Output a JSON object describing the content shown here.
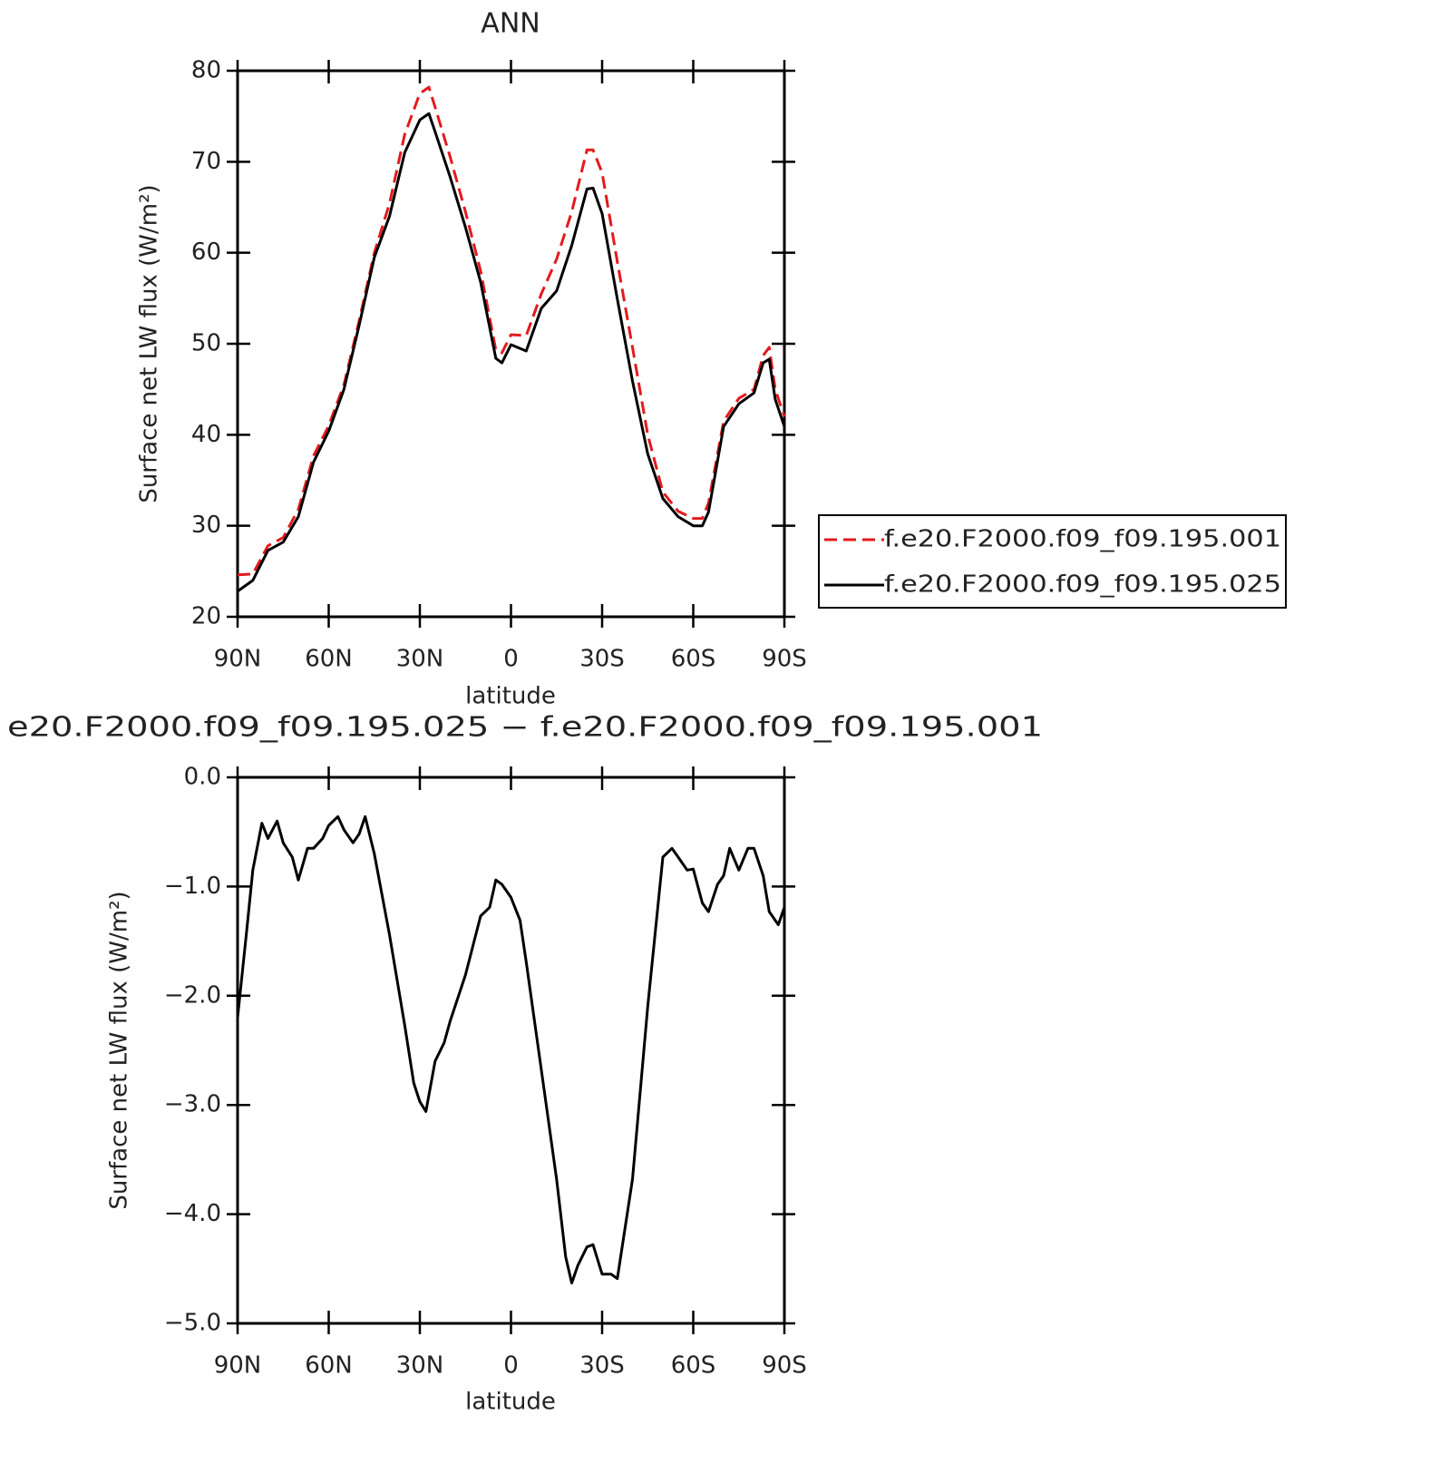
{
  "chart_data": [
    {
      "type": "line",
      "title": "ANN",
      "xlabel": "latitude",
      "ylabel": "Surface net LW flux (W/m²)",
      "xlim": [
        90,
        -90
      ],
      "xticks": [
        {
          "value": 90,
          "label": "90N"
        },
        {
          "value": 60,
          "label": "60N"
        },
        {
          "value": 30,
          "label": "30N"
        },
        0,
        {
          "value": -30,
          "label": "30S"
        },
        {
          "value": -60,
          "label": "60S"
        },
        {
          "value": -90,
          "label": "90S"
        }
      ],
      "ylim": [
        20,
        80
      ],
      "yticks": [
        20,
        30,
        40,
        50,
        60,
        70,
        80
      ],
      "legend": "right",
      "x": [
        90,
        85,
        80,
        75,
        70,
        65,
        60,
        55,
        50,
        45,
        40,
        35,
        30,
        27,
        25,
        20,
        15,
        10,
        5,
        3,
        0,
        -5,
        -10,
        -15,
        -20,
        -25,
        -27,
        -30,
        -35,
        -40,
        -45,
        -50,
        -55,
        -60,
        -63,
        -65,
        -70,
        -75,
        -80,
        -83,
        -85,
        -87,
        -90
      ],
      "series": [
        {
          "name": "f.e20.F2000.f09_f09.195.001",
          "color": "#e41a1c",
          "dashed": true,
          "values": [
            24.6,
            24.7,
            27.8,
            28.7,
            31.8,
            37.7,
            41,
            45.5,
            52.5,
            60,
            65.4,
            73,
            77.5,
            78.2,
            76,
            70.5,
            64.5,
            58,
            49.3,
            49,
            51,
            50.9,
            55.5,
            59.3,
            64.5,
            71.3,
            71.3,
            68.8,
            59,
            49.6,
            40,
            33.7,
            31.6,
            30.8,
            30.8,
            32.5,
            41.5,
            44,
            45,
            48.7,
            49.6,
            45,
            42
          ]
        },
        {
          "name": "f.e20.F2000.f09_f09.195.025",
          "color": "#000000",
          "dashed": false,
          "values": [
            22.8,
            24,
            27.3,
            28.2,
            31,
            37,
            40.4,
            45,
            52,
            59.5,
            64,
            71,
            74.6,
            75.3,
            73.3,
            68.3,
            62.8,
            56.8,
            48.4,
            47.9,
            49.9,
            49.2,
            53.9,
            55.8,
            60.8,
            67,
            67.1,
            64.3,
            54.9,
            45.9,
            37.9,
            33,
            31,
            30,
            30,
            31.5,
            40.9,
            43.4,
            44.6,
            47.9,
            48.3,
            43.9,
            40.9
          ]
        }
      ]
    },
    {
      "type": "line",
      "title": "e20.F2000.f09_f09.195.025 − f.e20.F2000.f09_f09.195.001",
      "xlabel": "latitude",
      "ylabel": "Surface net LW flux (W/m²)",
      "xlim": [
        90,
        -90
      ],
      "xticks": [
        {
          "value": 90,
          "label": "90N"
        },
        {
          "value": 60,
          "label": "60N"
        },
        {
          "value": 30,
          "label": "30N"
        },
        0,
        {
          "value": -30,
          "label": "30S"
        },
        {
          "value": -60,
          "label": "60S"
        },
        {
          "value": -90,
          "label": "90S"
        }
      ],
      "ylim": [
        -5,
        0
      ],
      "yticks": [
        {
          "value": -5,
          "label": "−5.0"
        },
        {
          "value": -4,
          "label": "−4.0"
        },
        {
          "value": -3,
          "label": "−3.0"
        },
        {
          "value": -2,
          "label": "−2.0"
        },
        {
          "value": -1,
          "label": "−1.0"
        },
        {
          "value": 0,
          "label": "0.0"
        }
      ],
      "color": "#000000",
      "x": [
        90,
        87,
        85,
        82,
        80,
        77,
        75,
        72,
        70,
        67,
        65,
        62,
        60,
        57,
        55,
        52,
        50,
        48,
        45,
        40,
        35,
        32,
        30,
        28,
        25,
        22,
        20,
        15,
        10,
        7,
        5,
        3,
        0,
        -3,
        -5,
        -10,
        -15,
        -18,
        -20,
        -22,
        -25,
        -27,
        -30,
        -33,
        -35,
        -40,
        -45,
        -50,
        -53,
        -55,
        -58,
        -60,
        -63,
        -65,
        -68,
        -70,
        -72,
        -75,
        -78,
        -80,
        -83,
        -85,
        -88,
        -90
      ],
      "values": [
        -2.2,
        -1.4,
        -0.85,
        -0.42,
        -0.56,
        -0.4,
        -0.6,
        -0.73,
        -0.94,
        -0.65,
        -0.65,
        -0.56,
        -0.44,
        -0.36,
        -0.48,
        -0.6,
        -0.52,
        -0.36,
        -0.7,
        -1.44,
        -2.27,
        -2.8,
        -2.97,
        -3.06,
        -2.6,
        -2.43,
        -2.23,
        -1.81,
        -1.27,
        -1.19,
        -0.94,
        -0.98,
        -1.1,
        -1.31,
        -1.69,
        -2.68,
        -3.68,
        -4.39,
        -4.63,
        -4.47,
        -4.3,
        -4.28,
        -4.55,
        -4.55,
        -4.59,
        -3.68,
        -2.1,
        -0.73,
        -0.65,
        -0.73,
        -0.85,
        -0.84,
        -1.15,
        -1.23,
        -0.98,
        -0.9,
        -0.65,
        -0.85,
        -0.65,
        -0.65,
        -0.9,
        -1.23,
        -1.35,
        -1.19
      ]
    }
  ]
}
